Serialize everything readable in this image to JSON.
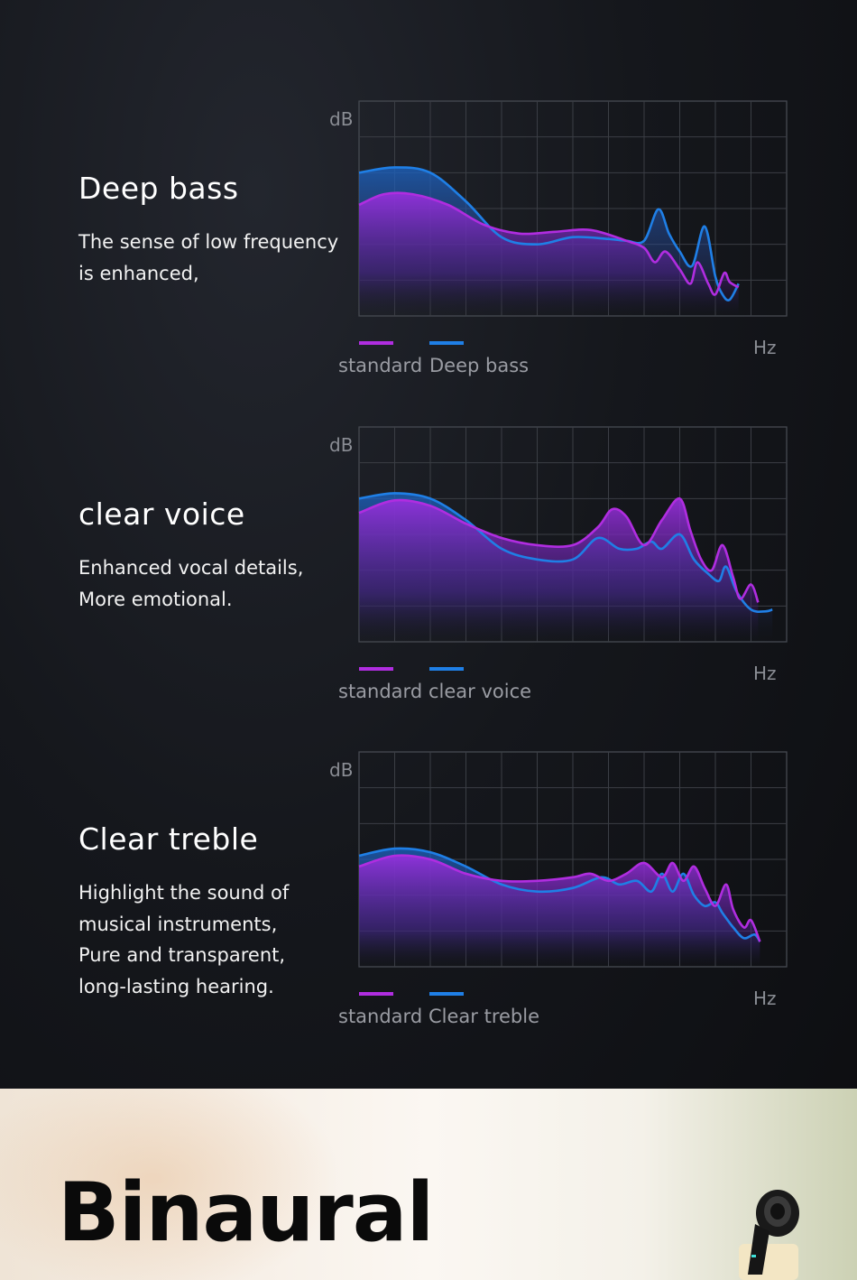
{
  "sections": [
    {
      "heading": "Deep bass",
      "description": [
        "The sense of low frequency",
        "is enhanced,"
      ],
      "chart_data": {
        "type": "area",
        "y_axis_label": "dB",
        "x_axis_label": "Hz",
        "grid": true,
        "xlim": [
          0,
          12
        ],
        "ylim": [
          0,
          6
        ],
        "series": [
          {
            "name": "standard",
            "color": "#b02de0",
            "values": [
              [
                0,
                3.1
              ],
              [
                0.7,
                3.4
              ],
              [
                1.5,
                3.4
              ],
              [
                2.5,
                3.1
              ],
              [
                3.5,
                2.55
              ],
              [
                4.5,
                2.3
              ],
              [
                5.5,
                2.35
              ],
              [
                6.5,
                2.4
              ],
              [
                7.5,
                2.1
              ],
              [
                8,
                1.9
              ],
              [
                8.3,
                1.5
              ],
              [
                8.6,
                1.8
              ],
              [
                9,
                1.3
              ],
              [
                9.3,
                0.9
              ],
              [
                9.5,
                1.5
              ],
              [
                9.8,
                0.9
              ],
              [
                10,
                0.6
              ],
              [
                10.25,
                1.2
              ],
              [
                10.4,
                0.95
              ],
              [
                10.65,
                0.8
              ]
            ]
          },
          {
            "name": "Deep bass",
            "color": "#1f7fe6",
            "values": [
              [
                0,
                4
              ],
              [
                1,
                4.15
              ],
              [
                2,
                4
              ],
              [
                3,
                3.2
              ],
              [
                4,
                2.2
              ],
              [
                5,
                2
              ],
              [
                6,
                2.2
              ],
              [
                7,
                2.15
              ],
              [
                7.5,
                2.1
              ],
              [
                8,
                2.1
              ],
              [
                8.4,
                2.98
              ],
              [
                8.7,
                2.3
              ],
              [
                9,
                1.8
              ],
              [
                9.35,
                1.4
              ],
              [
                9.7,
                2.5
              ],
              [
                10,
                1.1
              ],
              [
                10.2,
                0.6
              ],
              [
                10.4,
                0.45
              ],
              [
                10.65,
                0.9
              ]
            ]
          }
        ]
      }
    },
    {
      "heading": "clear voice",
      "description": [
        "Enhanced vocal details,",
        "More emotional."
      ],
      "chart_data": {
        "type": "area",
        "y_axis_label": "dB",
        "x_axis_label": "Hz",
        "grid": true,
        "xlim": [
          0,
          12
        ],
        "ylim": [
          0,
          6
        ],
        "series": [
          {
            "name": "standard",
            "color": "#b02de0",
            "values": [
              [
                0,
                3.6
              ],
              [
                1,
                3.95
              ],
              [
                2,
                3.8
              ],
              [
                3,
                3.3
              ],
              [
                4,
                2.9
              ],
              [
                5,
                2.7
              ],
              [
                6,
                2.7
              ],
              [
                6.7,
                3.2
              ],
              [
                7.1,
                3.7
              ],
              [
                7.5,
                3.5
              ],
              [
                8,
                2.7
              ],
              [
                8.5,
                3.4
              ],
              [
                9,
                4
              ],
              [
                9.3,
                3.1
              ],
              [
                9.6,
                2.3
              ],
              [
                9.9,
                2
              ],
              [
                10.2,
                2.7
              ],
              [
                10.5,
                1.8
              ],
              [
                10.7,
                1.2
              ],
              [
                11,
                1.6
              ],
              [
                11.2,
                1.1
              ]
            ]
          },
          {
            "name": "clear voice",
            "color": "#1f7fe6",
            "values": [
              [
                0,
                4
              ],
              [
                1,
                4.15
              ],
              [
                2,
                4
              ],
              [
                3,
                3.4
              ],
              [
                4,
                2.6
              ],
              [
                5,
                2.3
              ],
              [
                6,
                2.3
              ],
              [
                6.7,
                2.9
              ],
              [
                7.3,
                2.6
              ],
              [
                7.8,
                2.6
              ],
              [
                8.2,
                2.8
              ],
              [
                8.5,
                2.6
              ],
              [
                9,
                3
              ],
              [
                9.4,
                2.3
              ],
              [
                9.8,
                1.9
              ],
              [
                10.1,
                1.7
              ],
              [
                10.3,
                2.1
              ],
              [
                10.6,
                1.4
              ],
              [
                11,
                0.9
              ],
              [
                11.4,
                0.85
              ],
              [
                11.6,
                0.9
              ]
            ]
          }
        ]
      }
    },
    {
      "heading": "Clear treble",
      "description": [
        "Highlight the sound of",
        "musical instruments,",
        "Pure and transparent,",
        "long-lasting hearing."
      ],
      "chart_data": {
        "type": "area",
        "y_axis_label": "dB",
        "x_axis_label": "Hz",
        "grid": true,
        "xlim": [
          0,
          12
        ],
        "ylim": [
          0,
          6
        ],
        "series": [
          {
            "name": "standard",
            "color": "#b02de0",
            "values": [
              [
                0,
                2.8
              ],
              [
                1,
                3.1
              ],
              [
                2,
                3
              ],
              [
                3,
                2.6
              ],
              [
                4,
                2.4
              ],
              [
                5,
                2.4
              ],
              [
                6,
                2.5
              ],
              [
                6.5,
                2.6
              ],
              [
                7,
                2.4
              ],
              [
                7.5,
                2.6
              ],
              [
                8,
                2.9
              ],
              [
                8.5,
                2.5
              ],
              [
                8.8,
                2.9
              ],
              [
                9.1,
                2.4
              ],
              [
                9.4,
                2.8
              ],
              [
                9.7,
                2.2
              ],
              [
                10,
                1.7
              ],
              [
                10.3,
                2.3
              ],
              [
                10.5,
                1.6
              ],
              [
                10.8,
                1.1
              ],
              [
                11,
                1.3
              ],
              [
                11.25,
                0.7
              ]
            ]
          },
          {
            "name": "Clear treble",
            "color": "#1f7fe6",
            "values": [
              [
                0,
                3.1
              ],
              [
                1,
                3.3
              ],
              [
                2,
                3.2
              ],
              [
                3,
                2.8
              ],
              [
                4,
                2.3
              ],
              [
                5,
                2.1
              ],
              [
                6,
                2.2
              ],
              [
                6.8,
                2.5
              ],
              [
                7.3,
                2.3
              ],
              [
                7.8,
                2.4
              ],
              [
                8.2,
                2.1
              ],
              [
                8.5,
                2.6
              ],
              [
                8.8,
                2.1
              ],
              [
                9.1,
                2.6
              ],
              [
                9.4,
                2
              ],
              [
                9.7,
                1.7
              ],
              [
                10,
                1.8
              ],
              [
                10.2,
                1.5
              ],
              [
                10.5,
                1.1
              ],
              [
                10.8,
                0.8
              ],
              [
                11.1,
                0.9
              ],
              [
                11.25,
                0.7
              ]
            ]
          }
        ]
      }
    }
  ],
  "banner": {
    "title": "Binaural"
  },
  "colors": {
    "standard": "#b02de0",
    "variant": "#1f7fe6"
  }
}
